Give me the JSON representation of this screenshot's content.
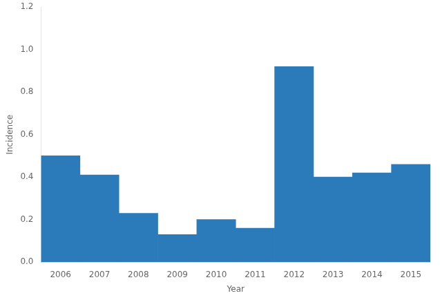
{
  "chart_data": {
    "type": "bar",
    "categories": [
      "2006",
      "2007",
      "2008",
      "2009",
      "2010",
      "2011",
      "2012",
      "2013",
      "2014",
      "2015"
    ],
    "values": [
      0.5,
      0.41,
      0.23,
      0.13,
      0.2,
      0.16,
      0.92,
      0.4,
      0.42,
      0.46
    ],
    "color": "#2b7bba",
    "xlabel": "Year",
    "ylabel": "Incidence",
    "ylim": [
      0,
      1.2
    ],
    "yticks": [
      {
        "value": 0.0,
        "label": "0.0"
      },
      0.2,
      0.4,
      0.6,
      0.8,
      {
        "value": 1.0,
        "label": "1.0"
      },
      1.2
    ],
    "grid": false
  }
}
